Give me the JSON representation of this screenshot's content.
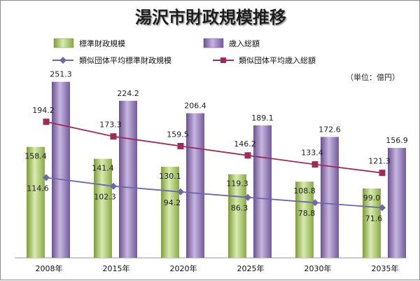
{
  "chart_data": {
    "type": "bar",
    "title": "湯沢市財政規模推移",
    "unit_note": "（単位：億円）",
    "categories": [
      "2008年",
      "2015年",
      "2020年",
      "2025年",
      "2030年",
      "2035年"
    ],
    "ylim": [
      0,
      300
    ],
    "series": [
      {
        "name": "標準財政規模",
        "kind": "bar",
        "color": "#9bbb59",
        "values": [
          158.4,
          141.4,
          130.1,
          119.3,
          108.8,
          99.0
        ]
      },
      {
        "name": "歳入総額",
        "kind": "bar",
        "color": "#8064a2",
        "values": [
          251.3,
          224.2,
          206.4,
          189.1,
          172.6,
          156.9
        ]
      },
      {
        "name": "類似団体平均標準財政規模",
        "kind": "line",
        "color": "#6a6aa8",
        "values": [
          114.6,
          102.3,
          94.2,
          86.3,
          78.8,
          71.6
        ]
      },
      {
        "name": "類似団体平均歳入総額",
        "kind": "line",
        "color": "#9b2d5a",
        "values": [
          194.2,
          173.3,
          159.5,
          146.2,
          133.4,
          121.3
        ]
      }
    ],
    "value_labels": {
      "bar0": [
        "158.4",
        "141.4",
        "130.1",
        "119.3",
        "108.8",
        "99.0"
      ],
      "bar1": [
        "251.3",
        "224.2",
        "206.4",
        "189.1",
        "172.6",
        "156.9"
      ],
      "line0": [
        "114.6",
        "102.3",
        "94.2",
        "86.3",
        "78.8",
        "71.6"
      ],
      "line1": [
        "194.2",
        "173.3",
        "159.5",
        "146.2",
        "133.4",
        "121.3"
      ]
    },
    "grid": false,
    "legend_position": "top"
  }
}
